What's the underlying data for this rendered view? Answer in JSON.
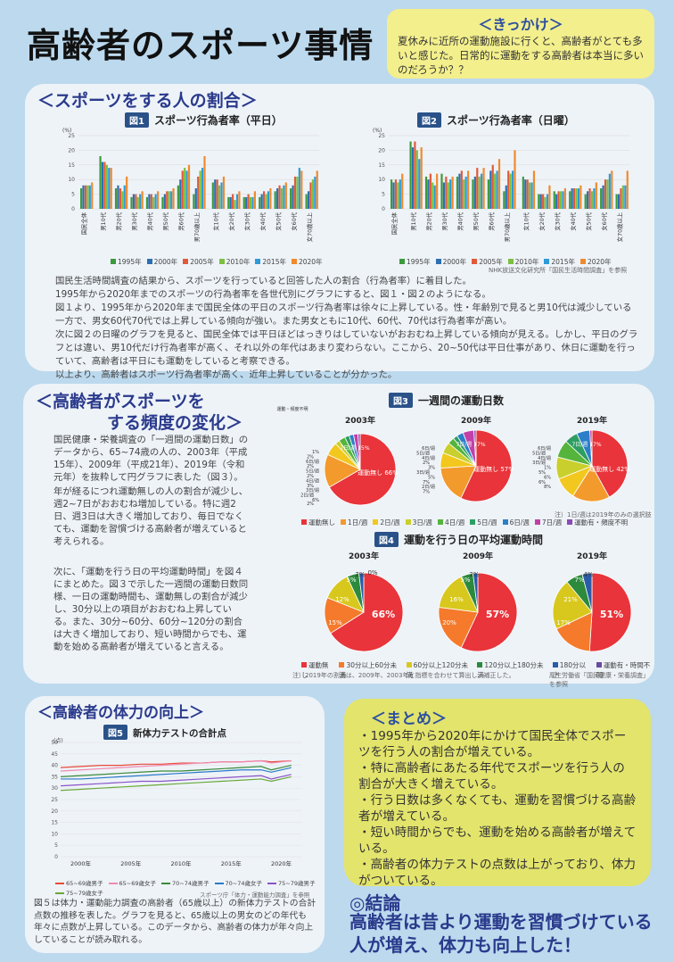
{
  "title": "高齢者のスポーツ事情",
  "kikkake": {
    "heading": "＜きっかけ＞",
    "text": "夏休みに近所の運動施設に行くと、高齢者がとても多いと感じた。日常的に運動をする高齢者は本当に多いのだろうか？？"
  },
  "section1": {
    "heading": "＜スポーツをする人の割合＞",
    "fig1_no": "図1",
    "fig1_title": "スポーツ行為者率（平日）",
    "fig2_no": "図2",
    "fig2_title": "スポーツ行為者率（日曜）",
    "unit": "(%)",
    "legend": [
      "1995年",
      "2000年",
      "2005年",
      "2010年",
      "2015年",
      "2020年"
    ],
    "source": "NHK放送文化研究所「国民生活時間調査」を参照",
    "paragraphs": [
      "国民生活時間調査の結果から、スポーツを行っていると回答した人の割合（行為者率）に着目した。",
      "1995年から2020年までのスポーツの行為者率を各世代別にグラフにすると、図１・図２のようになる。",
      "図１より、1995年から2020年まで国民全体の平日のスポーツ行為者率は徐々に上昇している。性・年齢別で見ると男10代は減少している一方で、男女60代70代では上昇している傾向が強い。また男女ともに10代、60代、70代は行為者率が高い。",
      "次に図２の日曜のグラフを見ると、国民全体では平日ほどはっきりはしていないがおおむね上昇している傾向が見える。しかし、平日のグラフとは違い、男10代だけ行為者率が高く、それ以外の年代はあまり変わらない。ここから、20~50代は平日仕事があり、休日に運動を行っていて、高齢者は平日にも運動をしていると考察できる。",
      "以上より、高齢者はスポーツ行為者率が高く、近年上昇していることが分かった。"
    ]
  },
  "section2": {
    "heading_line1": "＜高齢者がスポーツを",
    "heading_line2": "する頻度の変化＞",
    "paragraph1": "国民健康・栄養調査の「一週間の運動日数」のデータから、65~74歳の人の、2003年（平成15年）、2009年（平成21年）、2019年（令和元年）を抜粋して円グラフに表した（図３）。",
    "paragraph2": "年が経るにつれ運動無しの人の割合が減少し、週2~7日がおおむね増加している。特に週2日、週3日は大きく増加しており、毎日でなくても、運動を習慣づける高齢者が増えていると考えられる。",
    "paragraph3": "次に、「運動を行う日の平均運動時間」を図４にまとめた。図３で示した一週間の運動日数同様、一日の運動時間も、運動無しの割合が減少し、30分以上の項目がおおむね上昇している。また、30分~60分、60分~120分の割合は大きく増加しており、短い時間からでも、運動を始める高齢者が増えていると言える。",
    "fig3_no": "図3",
    "fig3_title": "一週間の運動日数",
    "fig4_no": "図4",
    "fig4_title": "運動を行う日の平均運動時間",
    "years": [
      "2003年",
      "2009年",
      "2019年"
    ],
    "fig3_note": "運動・頻度不明",
    "fig3_footnote": "注）1日/週は2019年のみの選択肢",
    "fig3_legend": [
      "運動無し",
      "1日/週",
      "2日/週",
      "3日/週",
      "4日/週",
      "5日/週",
      "6日/週",
      "7日/週",
      "運動有・頻度不明"
    ],
    "fig4_legend": [
      "運動無し",
      "30分以上60分未満",
      "60分以上120分未満",
      "120分以上180分未満",
      "180分以上",
      "運動有・時間不明"
    ],
    "fig4_footnote": "注）2019年の割合は、2009年、2003年と指標を合わせて算出し、補正した。",
    "fig4_source": "厚生労働省「国民健康・栄養調査」を参照"
  },
  "fig3_pies": [
    {
      "year": "2003年",
      "labels": [
        "運動無し 66%",
        "7日/週 15%"
      ],
      "small": [
        "1%",
        "2%",
        "6日/週",
        "2%",
        "5日/週",
        "2%",
        "4日/週",
        "3%",
        "3日/週",
        "2日/週",
        "6%",
        "2%"
      ]
    },
    {
      "year": "2009年",
      "labels": [
        "運動無し 57%",
        "7日/週 17%"
      ],
      "small": [
        "6日/週",
        "5日/週",
        "4日/週",
        "2%",
        "3%",
        "3日/週",
        "5%",
        "7%",
        "2日/週",
        "7%"
      ]
    },
    {
      "year": "2019年",
      "labels": [
        "運動無し 42%",
        "7日/週 17%",
        "2日/週 10%",
        "3日/週 10%",
        "1日/週"
      ],
      "small": [
        "6日/週",
        "5日/週",
        "4日/週",
        "3日/週",
        "1%",
        "5%",
        "6%",
        "6%",
        "8%"
      ]
    }
  ],
  "fig4_pies": [
    {
      "year": "2003年",
      "main": "66%",
      "labels": [
        "15%",
        "12%",
        "5%",
        "2%",
        "0%"
      ]
    },
    {
      "year": "2009年",
      "main": "57%",
      "labels": [
        "20%",
        "16%",
        "5%",
        "2%"
      ]
    },
    {
      "year": "2019年",
      "main": "51%",
      "labels": [
        "17%",
        "21%",
        "7%",
        "4%"
      ]
    }
  ],
  "section3": {
    "heading": "＜高齢者の体力の向上＞",
    "fig5_no": "図5",
    "fig5_title": "新体力テストの合計点",
    "unit": "(点)",
    "x_labels": [
      "2000年",
      "2005年",
      "2010年",
      "2015年",
      "2020年"
    ],
    "legend": [
      "65~69歳男子",
      "65~69歳女子",
      "70~74歳男子",
      "70~74歳女子",
      "75~79歳男子",
      "75~79歳女子"
    ],
    "source": "スポーツ庁「体力・運動能力調査」を参照",
    "paragraph": "図５は体力・運動能力調査の高齢者（65歳以上）の新体力テストの合計点数の推移を表した。グラフを見ると、65歳以上の男女のどの年代も年々に点数が上昇している。このデータから、高齢者の体力が年々向上していることが読み取れる。"
  },
  "summary": {
    "heading": "＜まとめ＞",
    "items": [
      "・1995年から2020年にかけて国民全体でスポーツを行う人の割合が増えている。",
      "・特に高齢者にあたる年代でスポーツを行う人の割合が大きく増えている。",
      "・行う日数は多くなくても、運動を習慣づける高齢者が増えている。",
      "・短い時間からでも、運動を始める高齢者が増えている。",
      "・高齢者の体力テストの点数は上がっており、体力がついている。"
    ]
  },
  "conclusion": {
    "heading": "◎結論",
    "text": "高齢者は昔より運動を習慣づけている人が増え、体力も向上した！"
  },
  "colors": {
    "y1995": "#3c9a3c",
    "y2000": "#2d6fb0",
    "y2005": "#e05a3a",
    "y2010": "#7cc040",
    "y2015": "#2e9ad8",
    "y2020": "#f08a2c"
  },
  "chart_data": [
    {
      "type": "bar",
      "title": "スポーツ行為者率（平日）",
      "ylabel": "(%)",
      "ylim": [
        0,
        25
      ],
      "categories": [
        "国民全体",
        "男10代",
        "男20代",
        "男30代",
        "男40代",
        "男50代",
        "男60代",
        "男70歳以上",
        "女10代",
        "女20代",
        "女30代",
        "女40代",
        "女50代",
        "女60代",
        "女70歳以上"
      ],
      "series": [
        {
          "name": "1995年",
          "values": [
            7,
            18,
            7,
            4,
            4,
            4,
            8,
            5,
            9,
            4,
            4,
            4,
            6,
            7,
            5
          ]
        },
        {
          "name": "2000年",
          "values": [
            8,
            16,
            8,
            5,
            5,
            5,
            10,
            7,
            10,
            4,
            4,
            5,
            7,
            8,
            6
          ]
        },
        {
          "name": "2005年",
          "values": [
            8,
            16,
            7,
            5,
            5,
            6,
            13,
            11,
            10,
            5,
            5,
            6,
            8,
            11,
            9
          ]
        },
        {
          "name": "2010年",
          "values": [
            8,
            15,
            6,
            4,
            4,
            6,
            14,
            13,
            8,
            3,
            4,
            5,
            7,
            11,
            10
          ]
        },
        {
          "name": "2015年",
          "values": [
            8,
            14,
            8,
            5,
            5,
            6,
            13,
            14,
            9,
            5,
            4,
            6,
            8,
            14,
            11
          ]
        },
        {
          "name": "2020年",
          "values": [
            9,
            14,
            11,
            6,
            6,
            7,
            15,
            18,
            11,
            6,
            6,
            7,
            9,
            13,
            13
          ]
        }
      ]
    },
    {
      "type": "bar",
      "title": "スポーツ行為者率（日曜）",
      "ylabel": "(%)",
      "ylim": [
        0,
        25
      ],
      "categories": [
        "国民全体",
        "男10代",
        "男20代",
        "男30代",
        "男40代",
        "男50代",
        "男60代",
        "男70歳以上",
        "女10代",
        "女20代",
        "女30代",
        "女40代",
        "女50代",
        "女60代",
        "女70歳以上"
      ],
      "series": [
        {
          "name": "1995年",
          "values": [
            10,
            23,
            11,
            12,
            11,
            10,
            10,
            6,
            11,
            5,
            6,
            6,
            5,
            7,
            5
          ]
        },
        {
          "name": "2000年",
          "values": [
            9,
            21,
            10,
            9,
            12,
            11,
            13,
            8,
            10,
            5,
            5,
            7,
            6,
            8,
            5
          ]
        },
        {
          "name": "2005年",
          "values": [
            10,
            23,
            12,
            11,
            13,
            14,
            15,
            13,
            10,
            5,
            6,
            7,
            7,
            10,
            7
          ]
        },
        {
          "name": "2010年",
          "values": [
            9,
            20,
            9,
            9,
            10,
            11,
            12,
            12,
            9,
            4,
            6,
            7,
            6,
            10,
            8
          ]
        },
        {
          "name": "2015年",
          "values": [
            10,
            17,
            8,
            10,
            11,
            12,
            13,
            13,
            9,
            5,
            6,
            7,
            7,
            12,
            8
          ]
        },
        {
          "name": "2020年",
          "values": [
            12,
            21,
            12,
            11,
            13,
            14,
            17,
            20,
            13,
            8,
            7,
            8,
            9,
            13,
            13
          ]
        }
      ]
    },
    {
      "type": "pie",
      "title": "一週間の運動日数",
      "pies": [
        {
          "name": "2003年",
          "values": [
            66,
            15,
            6,
            2,
            3,
            2,
            2,
            2,
            1
          ]
        },
        {
          "name": "2009年",
          "values": [
            57,
            17,
            7,
            5,
            3,
            2,
            3,
            5,
            1
          ]
        },
        {
          "name": "2019年",
          "values": [
            42,
            17,
            10,
            10,
            8,
            6,
            6,
            1
          ]
        }
      ]
    },
    {
      "type": "pie",
      "title": "運動を行う日の平均運動時間",
      "pies": [
        {
          "name": "2003年",
          "values": [
            66,
            15,
            12,
            5,
            2,
            0
          ]
        },
        {
          "name": "2009年",
          "values": [
            57,
            20,
            16,
            5,
            2
          ]
        },
        {
          "name": "2019年",
          "values": [
            51,
            17,
            21,
            7,
            4
          ]
        }
      ]
    },
    {
      "type": "line",
      "title": "新体力テストの合計点",
      "ylabel": "(点)",
      "ylim": [
        0,
        50
      ],
      "x": [
        1998,
        2000,
        2002,
        2004,
        2006,
        2008,
        2010,
        2012,
        2014,
        2016,
        2018,
        2019,
        2021
      ],
      "series": [
        {
          "name": "65~69歳男子",
          "values": [
            39,
            39.5,
            40,
            40,
            40.5,
            40.5,
            41,
            41,
            41.5,
            41.5,
            42,
            41.5,
            42
          ]
        },
        {
          "name": "65~69歳女子",
          "values": [
            37.5,
            38,
            38.5,
            39,
            39.5,
            40,
            40.5,
            41,
            41.5,
            41.5,
            42,
            41,
            42
          ]
        },
        {
          "name": "70~74歳男子",
          "values": [
            35,
            35.5,
            36,
            36.5,
            37,
            37.5,
            37.5,
            38,
            38.5,
            39,
            39.5,
            38,
            40
          ]
        },
        {
          "name": "70~74歳女子",
          "values": [
            34,
            34,
            34.5,
            35,
            35.5,
            36,
            36.5,
            37,
            37.5,
            38,
            38,
            37,
            39
          ]
        },
        {
          "name": "75~79歳男子",
          "values": [
            31,
            31.5,
            32,
            32.5,
            33,
            33,
            33.5,
            34,
            34.5,
            35,
            35.5,
            34,
            36
          ]
        },
        {
          "name": "75~79歳女子",
          "values": [
            29,
            29.5,
            30,
            30.5,
            31,
            31.5,
            32,
            32.5,
            33,
            33.5,
            34,
            33,
            35
          ]
        }
      ]
    }
  ]
}
